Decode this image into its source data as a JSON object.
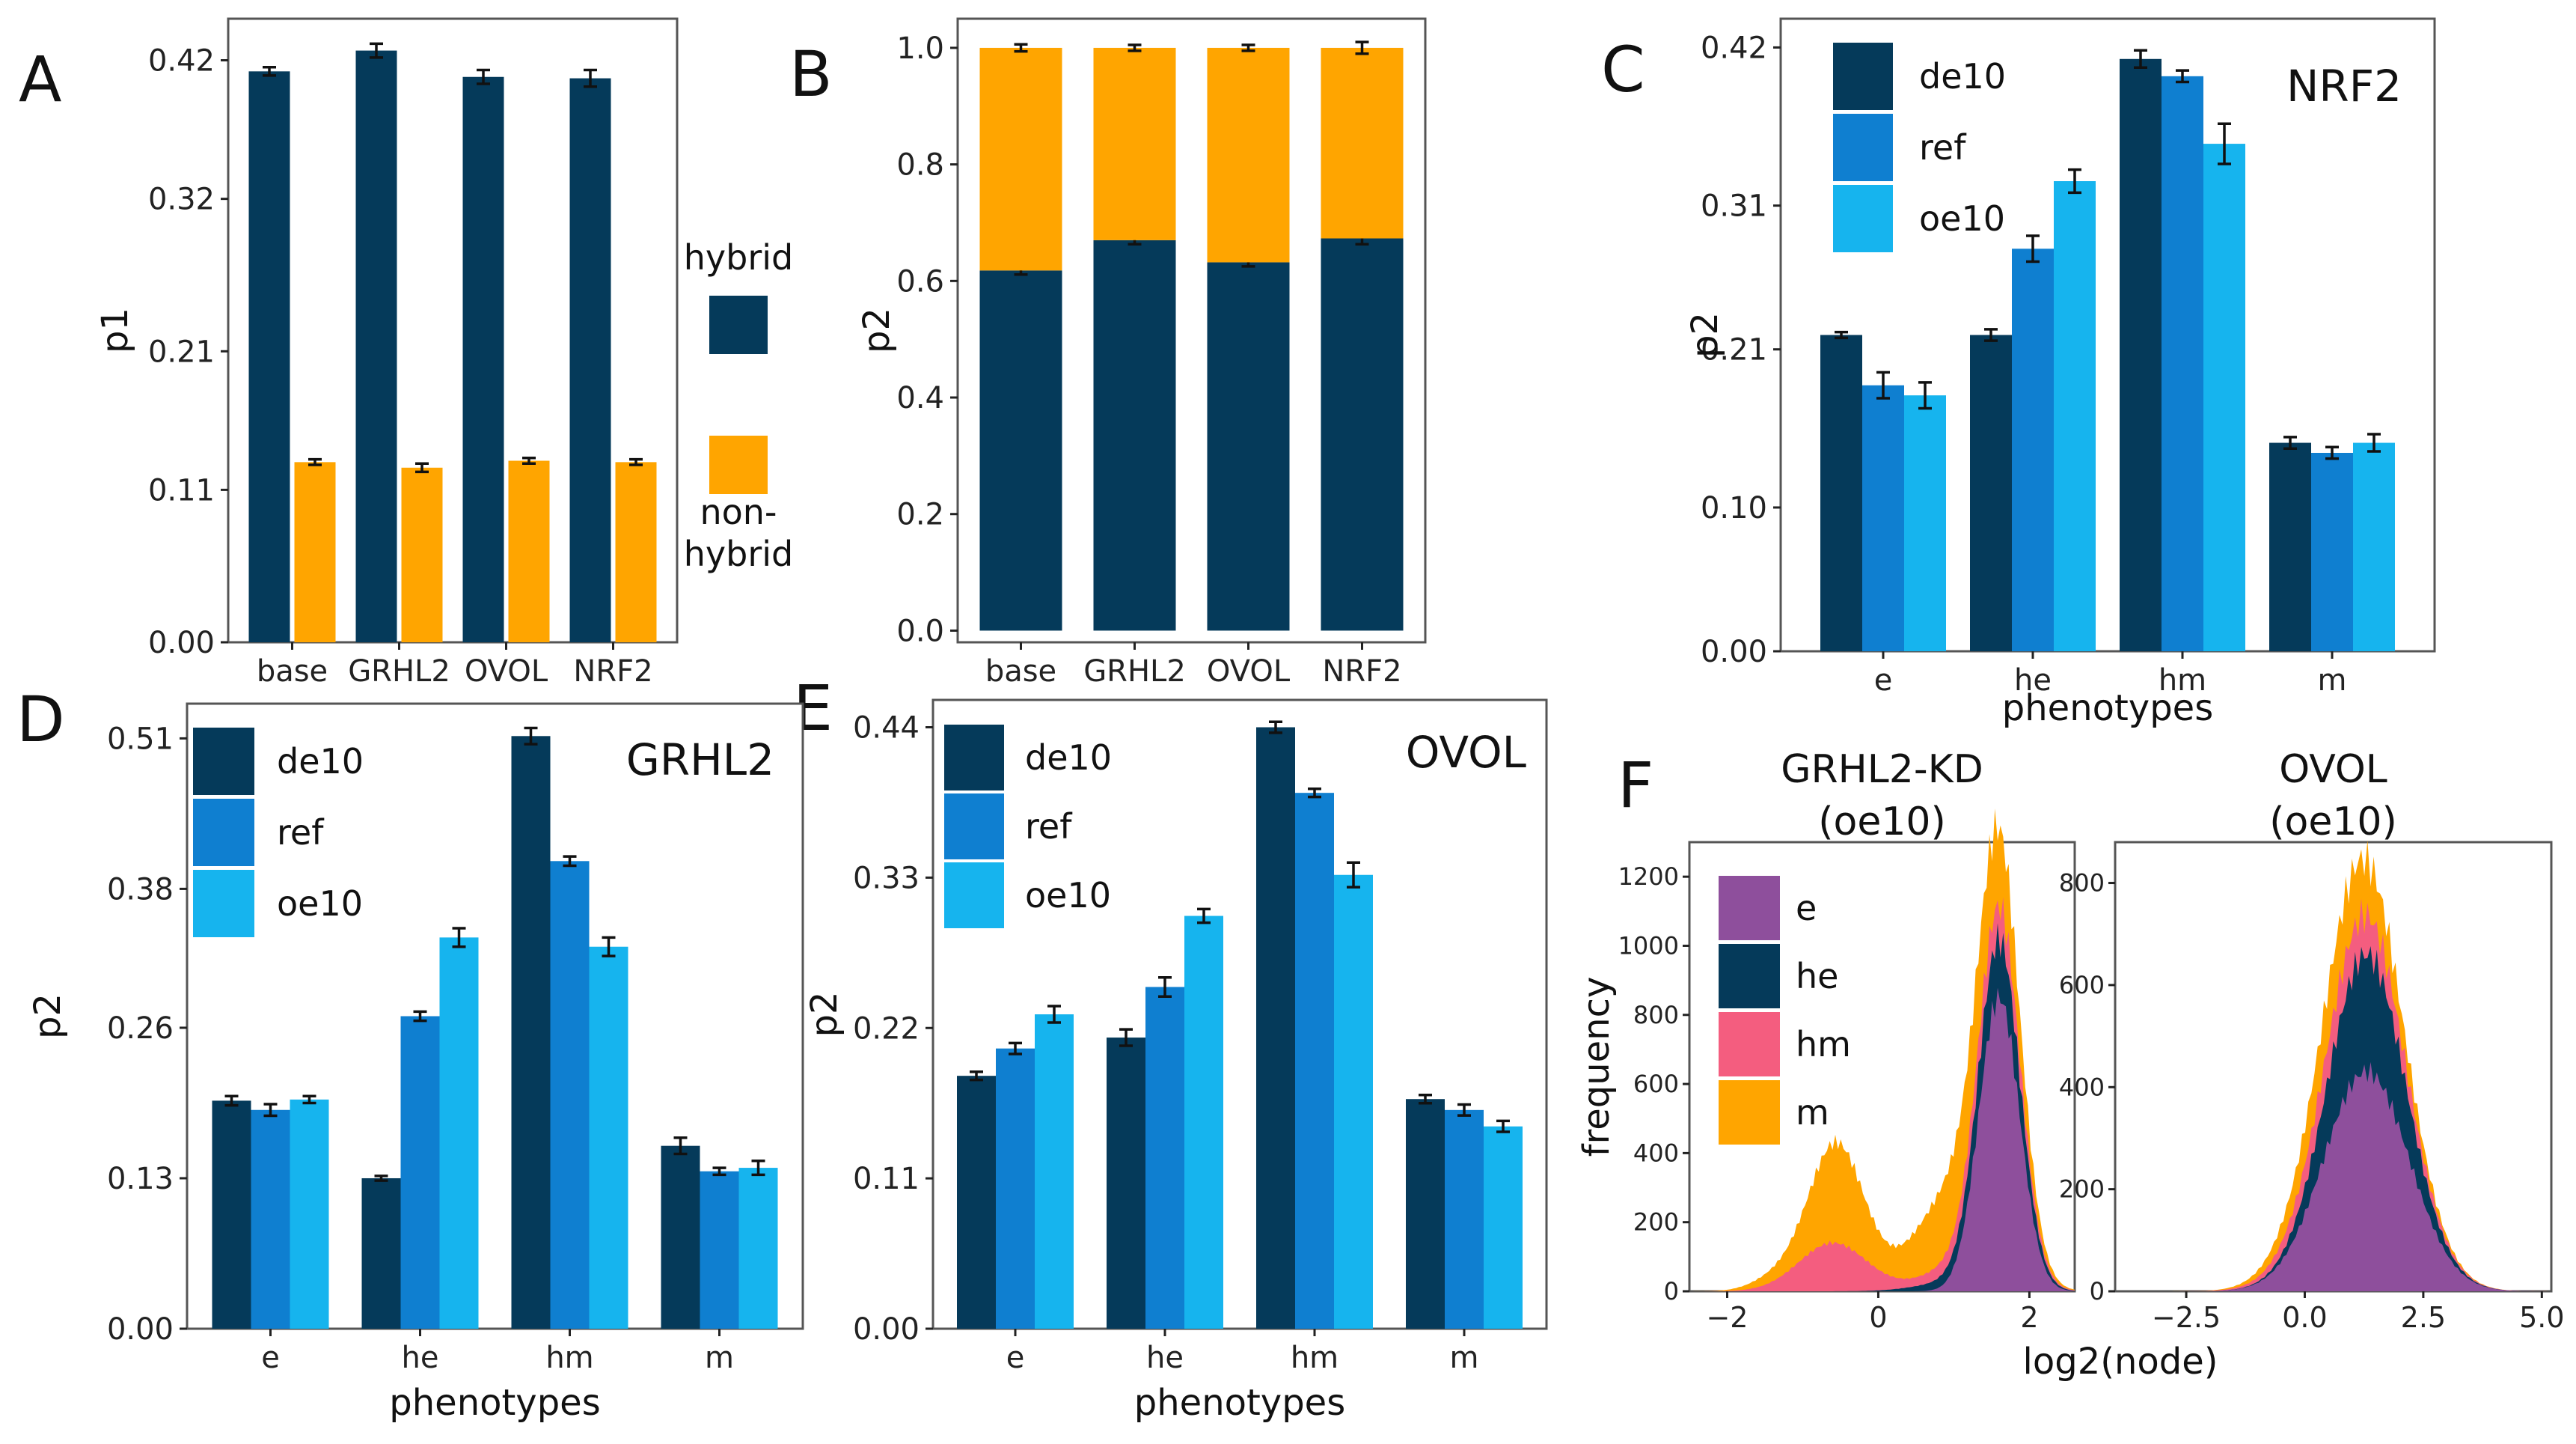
{
  "colors": {
    "dark": "#053a5a",
    "mid": "#0f7fd0",
    "light": "#16b4ee",
    "orange": "#ffa500",
    "purple": "#8e4f9c",
    "pink": "#f45d7f"
  },
  "panel_labels": [
    "A",
    "B",
    "C",
    "D",
    "E",
    "F"
  ],
  "chart_data": [
    {
      "id": "A",
      "type": "bar",
      "ylabel": "p1",
      "xlabel": "",
      "ylim": [
        0,
        0.45
      ],
      "yticks": [
        0.0,
        0.11,
        0.21,
        0.32,
        0.42
      ],
      "ytick_labels": [
        "0.00",
        "0.11",
        "0.21",
        "0.32",
        "0.42"
      ],
      "categories": [
        "base",
        "GRHL2",
        "OVOL",
        "NRF2"
      ],
      "series": [
        {
          "name": "hybrid",
          "color": "dark",
          "values": [
            0.412,
            0.427,
            0.408,
            0.407
          ],
          "errors": [
            0.003,
            0.005,
            0.005,
            0.006
          ]
        },
        {
          "name": "non-hybrid",
          "color": "orange",
          "values": [
            0.13,
            0.126,
            0.131,
            0.13
          ],
          "errors": [
            0.002,
            0.003,
            0.002,
            0.002
          ]
        }
      ],
      "legend": {
        "labels": [
          "hybrid",
          "non-\nhybrid"
        ],
        "placement": "outside-right"
      }
    },
    {
      "id": "B",
      "type": "bar",
      "stacked": true,
      "ylabel": "p2",
      "xlabel": "",
      "ylim": [
        -0.02,
        1.05
      ],
      "yticks": [
        0.0,
        0.2,
        0.4,
        0.6,
        0.8,
        1.0
      ],
      "ytick_labels": [
        "0.0",
        "0.2",
        "0.4",
        "0.6",
        "0.8",
        "1.0"
      ],
      "categories": [
        "base",
        "GRHL2",
        "OVOL",
        "NRF2"
      ],
      "series": [
        {
          "name": "hybrid",
          "color": "dark",
          "values": [
            0.618,
            0.67,
            0.632,
            0.673
          ],
          "errors": [
            0.007,
            0.007,
            0.007,
            0.01
          ]
        },
        {
          "name": "non-hybrid",
          "color": "orange",
          "values": [
            0.382,
            0.33,
            0.368,
            0.327
          ],
          "errors": [
            0.006,
            0.005,
            0.005,
            0.01
          ]
        }
      ]
    },
    {
      "id": "C",
      "type": "bar",
      "title": "NRF2",
      "ylabel": "p2",
      "xlabel": "phenotypes",
      "ylim": [
        0,
        0.44
      ],
      "yticks": [
        0.0,
        0.1,
        0.21,
        0.31,
        0.42
      ],
      "ytick_labels": [
        "0.00",
        "0.10",
        "0.21",
        "0.31",
        "0.42"
      ],
      "categories": [
        "e",
        "he",
        "hm",
        "m"
      ],
      "series": [
        {
          "name": "de10",
          "color": "dark",
          "values": [
            0.22,
            0.22,
            0.412,
            0.145
          ],
          "errors": [
            0.002,
            0.004,
            0.006,
            0.004
          ]
        },
        {
          "name": "ref",
          "color": "mid",
          "values": [
            0.185,
            0.28,
            0.4,
            0.138
          ],
          "errors": [
            0.009,
            0.009,
            0.004,
            0.004
          ]
        },
        {
          "name": "oe10",
          "color": "light",
          "values": [
            0.178,
            0.327,
            0.353,
            0.145
          ],
          "errors": [
            0.009,
            0.008,
            0.014,
            0.006
          ]
        }
      ]
    },
    {
      "id": "D",
      "type": "bar",
      "title": "GRHL2",
      "ylabel": "p2",
      "xlabel": "phenotypes",
      "ylim": [
        0,
        0.54
      ],
      "yticks": [
        0.0,
        0.13,
        0.26,
        0.38,
        0.51
      ],
      "ytick_labels": [
        "0.00",
        "0.13",
        "0.26",
        "0.38",
        "0.51"
      ],
      "categories": [
        "e",
        "he",
        "hm",
        "m"
      ],
      "series": [
        {
          "name": "de10",
          "color": "dark",
          "values": [
            0.197,
            0.13,
            0.512,
            0.158
          ],
          "errors": [
            0.004,
            0.002,
            0.007,
            0.007
          ]
        },
        {
          "name": "ref",
          "color": "mid",
          "values": [
            0.189,
            0.27,
            0.404,
            0.136
          ],
          "errors": [
            0.005,
            0.004,
            0.004,
            0.003
          ]
        },
        {
          "name": "oe10",
          "color": "light",
          "values": [
            0.198,
            0.338,
            0.33,
            0.139
          ],
          "errors": [
            0.003,
            0.008,
            0.008,
            0.006
          ]
        }
      ]
    },
    {
      "id": "E",
      "type": "bar",
      "title": "OVOL",
      "ylabel": "p2",
      "xlabel": "phenotypes",
      "ylim": [
        0,
        0.46
      ],
      "yticks": [
        0.0,
        0.11,
        0.22,
        0.33,
        0.44
      ],
      "ytick_labels": [
        "0.00",
        "0.11",
        "0.22",
        "0.33",
        "0.44"
      ],
      "categories": [
        "e",
        "he",
        "hm",
        "m"
      ],
      "series": [
        {
          "name": "de10",
          "color": "dark",
          "values": [
            0.185,
            0.213,
            0.44,
            0.168
          ],
          "errors": [
            0.003,
            0.006,
            0.004,
            0.003
          ]
        },
        {
          "name": "ref",
          "color": "mid",
          "values": [
            0.205,
            0.25,
            0.392,
            0.16
          ],
          "errors": [
            0.004,
            0.007,
            0.003,
            0.004
          ]
        },
        {
          "name": "oe10",
          "color": "light",
          "values": [
            0.23,
            0.302,
            0.332,
            0.148
          ],
          "errors": [
            0.006,
            0.005,
            0.009,
            0.004
          ]
        }
      ]
    },
    {
      "id": "F",
      "type": "histogram",
      "stacked": true,
      "title": "GRHL2-KD\n(oe10) | OVOL\n(oe10)",
      "xlabel": "log2(node)",
      "ylabel": "frequency",
      "legend": [
        "e",
        "he",
        "hm",
        "m"
      ],
      "subplots": [
        {
          "title": "GRHL2-KD\n(oe10)",
          "xlim": [
            -2.5,
            2.6
          ],
          "ylim": [
            0,
            1300
          ],
          "xticks": [
            -2,
            0,
            2
          ],
          "xtick_labels": [
            "−2",
            "0",
            "2"
          ],
          "yticks": [
            0,
            200,
            400,
            600,
            800,
            1000,
            1200
          ],
          "ytick_labels": [
            "0",
            "200",
            "400",
            "600",
            "800",
            "1000",
            "1200"
          ],
          "series": [
            {
              "name": "e",
              "color": "purple",
              "components": [
                {
                  "mean": 1.6,
                  "sd": 0.27,
                  "amp": 850
                }
              ]
            },
            {
              "name": "he",
              "color": "dark",
              "components": [
                {
                  "mean": 1.6,
                  "sd": 0.3,
                  "amp": 150
                },
                {
                  "mean": 1.1,
                  "sd": 0.5,
                  "amp": 30
                }
              ]
            },
            {
              "name": "hm",
              "color": "pink",
              "components": [
                {
                  "mean": -0.6,
                  "sd": 0.45,
                  "amp": 140
                },
                {
                  "mean": 1.2,
                  "sd": 0.5,
                  "amp": 50
                },
                {
                  "mean": 1.6,
                  "sd": 0.3,
                  "amp": 60
                }
              ]
            },
            {
              "name": "m",
              "color": "orange",
              "components": [
                {
                  "mean": -0.55,
                  "sd": 0.35,
                  "amp": 290
                },
                {
                  "mean": 1.0,
                  "sd": 0.5,
                  "amp": 220
                },
                {
                  "mean": 1.6,
                  "sd": 0.3,
                  "amp": 120
                },
                {
                  "mean": -1.4,
                  "sd": 0.3,
                  "amp": 25
                }
              ]
            }
          ]
        },
        {
          "title": "OVOL\n(oe10)",
          "xlim": [
            -4.0,
            5.2
          ],
          "ylim": [
            0,
            880
          ],
          "xticks": [
            -2.5,
            0.0,
            2.5,
            5.0
          ],
          "xtick_labels": [
            "−2.5",
            "0.0",
            "2.5",
            "5.0"
          ],
          "yticks": [
            0,
            200,
            400,
            600,
            800
          ],
          "ytick_labels": [
            "0",
            "200",
            "400",
            "600",
            "800"
          ],
          "series": [
            {
              "name": "e",
              "color": "purple",
              "components": [
                {
                  "mean": 1.3,
                  "sd": 0.9,
                  "amp": 430
                }
              ]
            },
            {
              "name": "he",
              "color": "dark",
              "components": [
                {
                  "mean": 1.3,
                  "sd": 0.75,
                  "amp": 230
                }
              ]
            },
            {
              "name": "hm",
              "color": "pink",
              "components": [
                {
                  "mean": 1.0,
                  "sd": 0.95,
                  "amp": 80
                }
              ]
            },
            {
              "name": "m",
              "color": "orange",
              "components": [
                {
                  "mean": 0.9,
                  "sd": 0.9,
                  "amp": 120
                }
              ]
            }
          ]
        }
      ]
    }
  ]
}
